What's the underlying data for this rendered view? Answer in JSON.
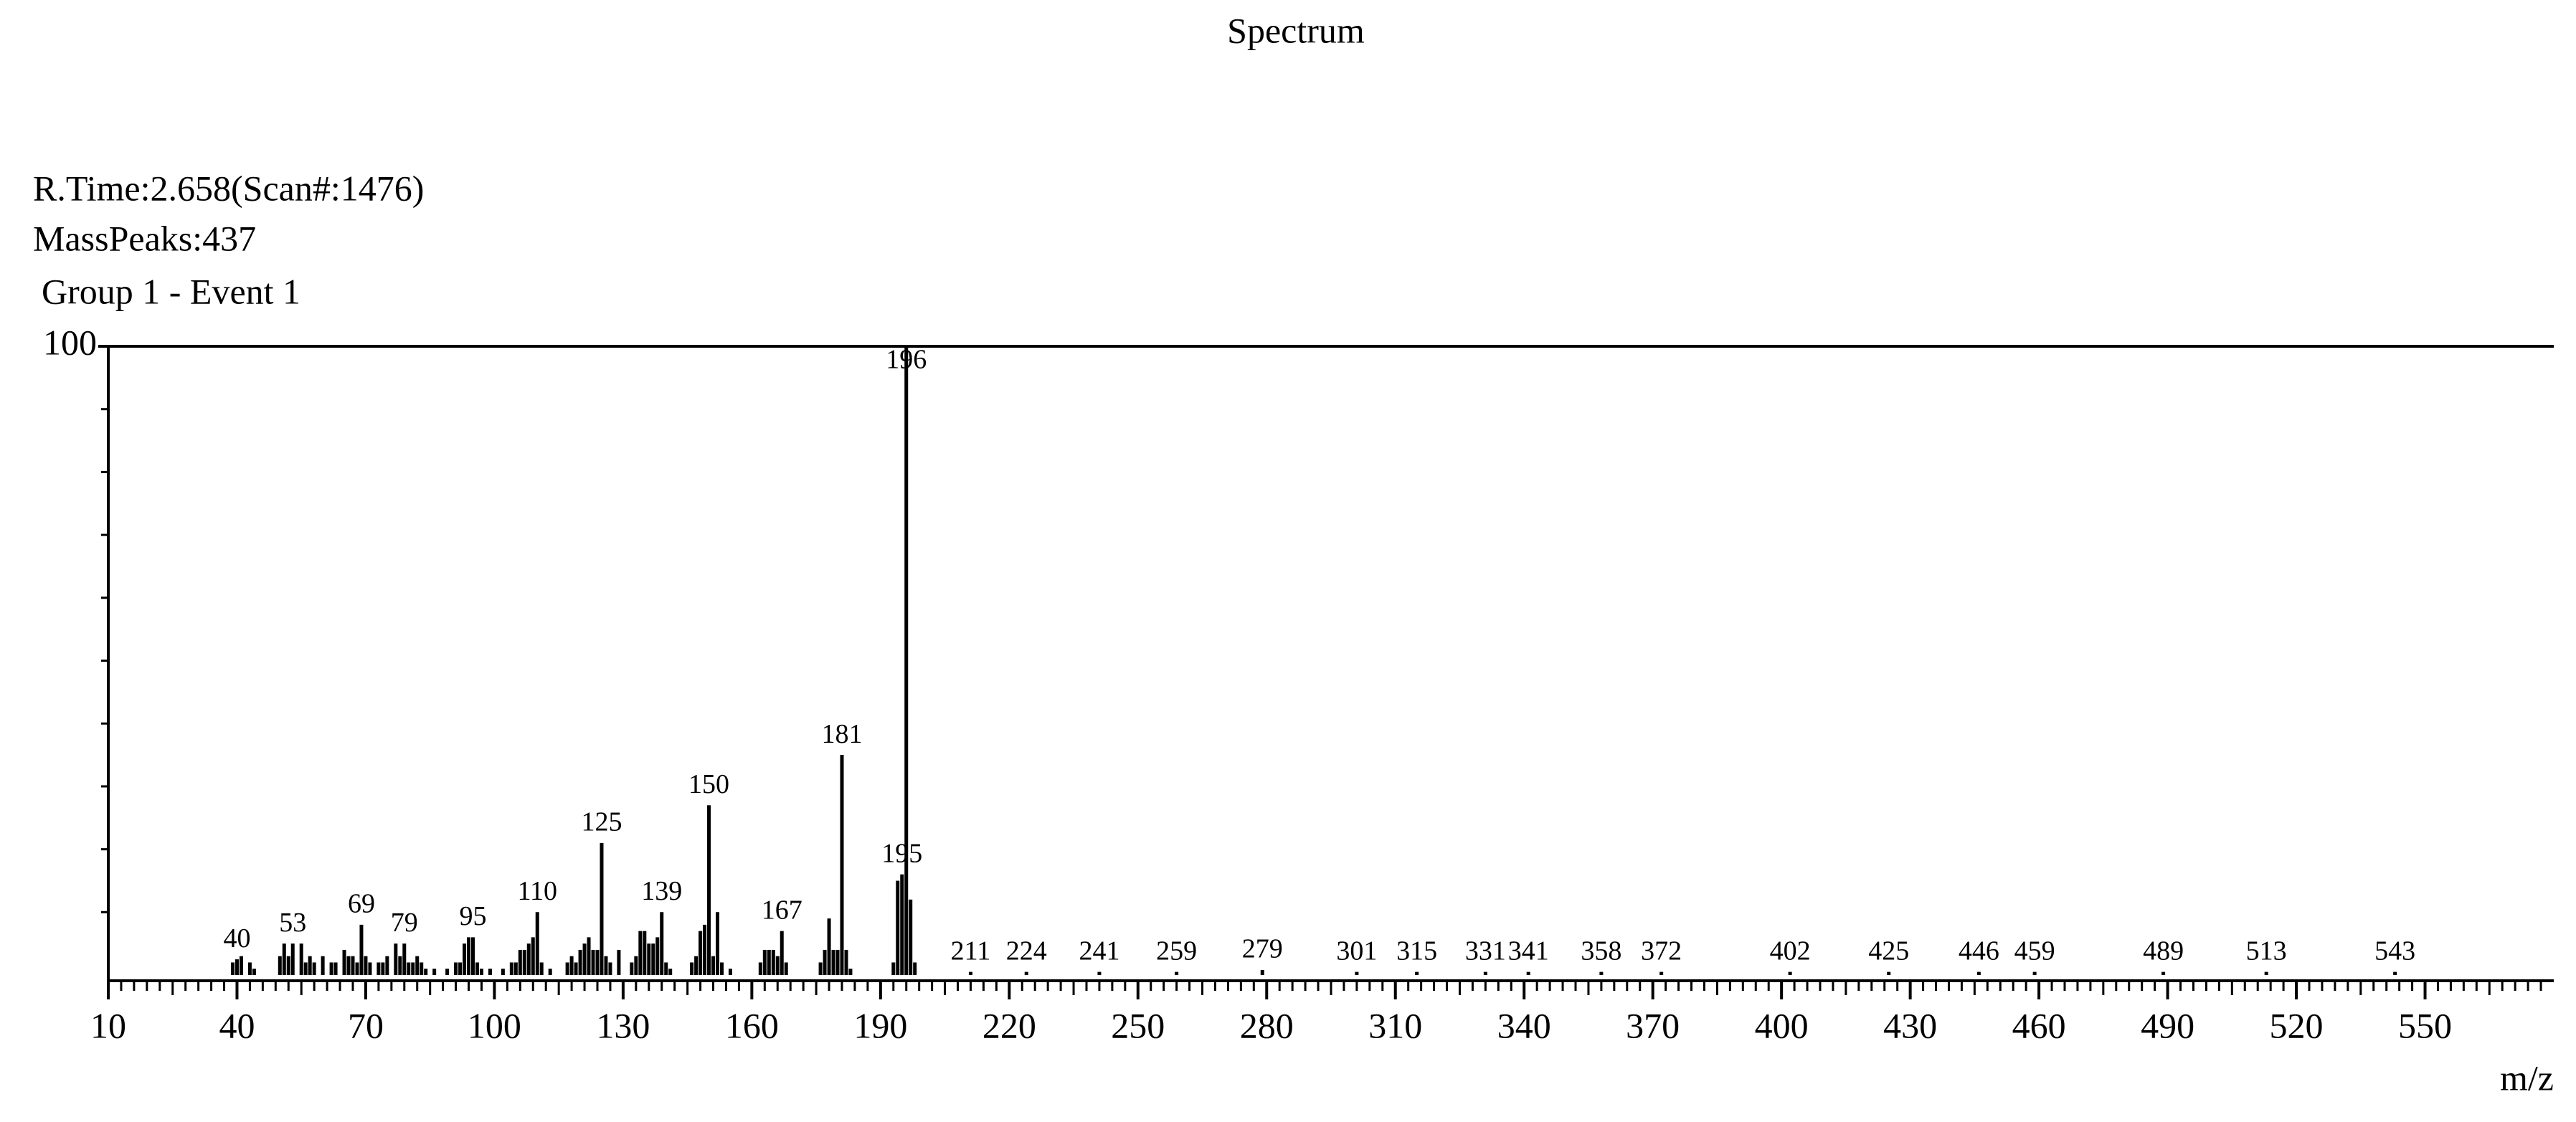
{
  "chart_data": {
    "type": "stick",
    "title": "Spectrum",
    "info": [
      "R.Time:2.658(Scan#:1476)",
      "MassPeaks:437",
      "Group 1 - Event 1"
    ],
    "xlabel": "m/z",
    "xlim": [
      10,
      580
    ],
    "xticks": [
      10,
      40,
      70,
      100,
      130,
      160,
      190,
      220,
      250,
      280,
      310,
      340,
      370,
      400,
      430,
      460,
      490,
      520,
      550
    ],
    "ylim": [
      0,
      100
    ],
    "yticks": [
      100
    ],
    "color": "#000000",
    "series": [
      {
        "labeled": true,
        "x": [
          40,
          53,
          69,
          79,
          95,
          110,
          125,
          139,
          150,
          167,
          181,
          195,
          196,
          211,
          224,
          241,
          259,
          279,
          301,
          315,
          331,
          341,
          358,
          372,
          402,
          425,
          446,
          459,
          489,
          513,
          543
        ],
        "values": [
          2.5,
          5,
          8,
          5,
          6,
          10,
          21,
          10,
          27,
          7,
          35,
          16,
          100,
          0.5,
          0.5,
          0.5,
          0.5,
          0.8,
          0.5,
          0.5,
          0.5,
          0.5,
          0.5,
          0.5,
          0.5,
          0.5,
          0.5,
          0.5,
          0.5,
          0.5,
          0.5
        ]
      },
      {
        "labeled": false,
        "x": [
          39,
          41,
          43,
          44,
          50,
          51,
          52,
          55,
          56,
          57,
          58,
          60,
          62,
          63,
          65,
          66,
          67,
          68,
          70,
          71,
          73,
          74,
          75,
          77,
          78,
          80,
          81,
          82,
          83,
          84,
          86,
          89,
          91,
          92,
          93,
          94,
          96,
          97,
          99,
          102,
          104,
          105,
          106,
          107,
          108,
          109,
          111,
          113,
          117,
          118,
          119,
          120,
          121,
          122,
          123,
          124,
          126,
          127,
          129,
          132,
          133,
          134,
          135,
          136,
          137,
          138,
          140,
          141,
          146,
          147,
          148,
          149,
          151,
          152,
          153,
          155,
          162,
          163,
          164,
          165,
          166,
          168,
          176,
          177,
          178,
          179,
          180,
          182,
          183,
          193,
          194,
          197,
          198
        ],
        "values": [
          2,
          3,
          2,
          1,
          3,
          5,
          3,
          5,
          2,
          3,
          2,
          3,
          2,
          2,
          4,
          3,
          3,
          2,
          3,
          2,
          2,
          2,
          3,
          5,
          3,
          2,
          2,
          3,
          2,
          1,
          1,
          1,
          2,
          2,
          5,
          6,
          2,
          1,
          1,
          1,
          2,
          2,
          4,
          4,
          5,
          6,
          2,
          1,
          2,
          3,
          2,
          4,
          5,
          6,
          4,
          4,
          3,
          2,
          4,
          2,
          3,
          7,
          7,
          5,
          5,
          6,
          2,
          1,
          2,
          3,
          7,
          8,
          3,
          10,
          2,
          1,
          2,
          4,
          4,
          4,
          3,
          2,
          2,
          4,
          9,
          4,
          4,
          4,
          1,
          2,
          15,
          12,
          2
        ]
      }
    ]
  }
}
